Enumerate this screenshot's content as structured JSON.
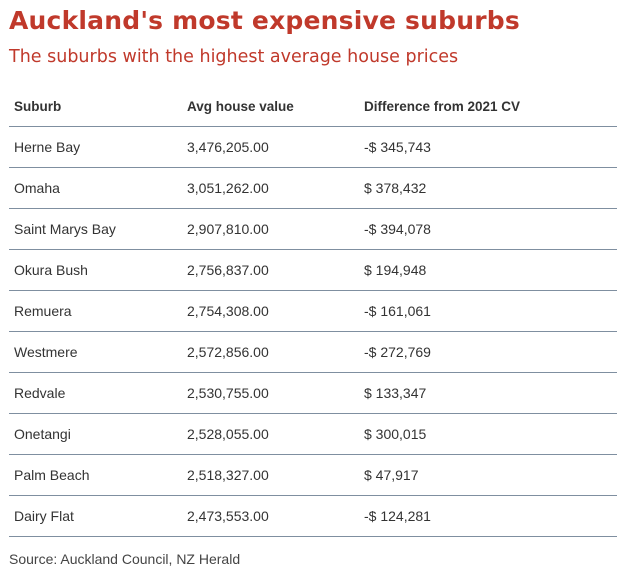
{
  "chart_data": {
    "type": "table",
    "title": "Auckland's most expensive suburbs",
    "subtitle": "The suburbs with the highest average house prices",
    "columns": [
      "Suburb",
      "Avg house value",
      "Difference from 2021 CV"
    ],
    "rows": [
      [
        "Herne Bay",
        "3,476,205.00",
        "-$ 345,743"
      ],
      [
        "Omaha",
        "3,051,262.00",
        "$ 378,432"
      ],
      [
        "Saint Marys Bay",
        "2,907,810.00",
        "-$ 394,078"
      ],
      [
        "Okura Bush",
        "2,756,837.00",
        "$ 194,948"
      ],
      [
        "Remuera",
        "2,754,308.00",
        "-$ 161,061"
      ],
      [
        "Westmere",
        "2,572,856.00",
        "-$ 272,769"
      ],
      [
        "Redvale",
        "2,530,755.00",
        "$ 133,347"
      ],
      [
        "Onetangi",
        "2,528,055.00",
        "$ 300,015"
      ],
      [
        "Palm Beach",
        "2,518,327.00",
        "$ 47,917"
      ],
      [
        "Dairy Flat",
        "2,473,553.00",
        "-$ 124,281"
      ]
    ],
    "source": "Source: Auckland Council, NZ Herald"
  },
  "colors": {
    "title": "#c0392b",
    "text": "#333333",
    "rule": "#7f8fa0"
  }
}
